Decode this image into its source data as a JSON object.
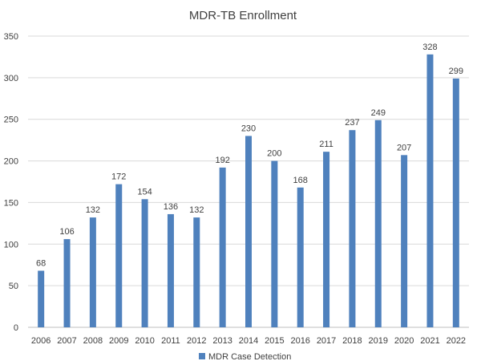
{
  "chart_data": {
    "type": "bar",
    "title": "MDR-TB Enrollment",
    "xlabel": "",
    "ylabel": "",
    "categories": [
      "2006",
      "2007",
      "2008",
      "2009",
      "2010",
      "2011",
      "2012",
      "2013",
      "2014",
      "2015",
      "2016",
      "2017",
      "2018",
      "2019",
      "2020",
      "2021",
      "2022"
    ],
    "series": [
      {
        "name": "MDR Case Detection",
        "values": [
          68,
          106,
          132,
          172,
          154,
          136,
          132,
          192,
          230,
          200,
          168,
          211,
          237,
          249,
          207,
          328,
          299
        ]
      }
    ],
    "ylim": [
      0,
      350
    ],
    "yticks": [
      0,
      50,
      100,
      150,
      200,
      250,
      300,
      350
    ],
    "grid": true,
    "data_labels": true,
    "legend": "bottom",
    "colors": {
      "bar": "#4f81bd"
    }
  }
}
